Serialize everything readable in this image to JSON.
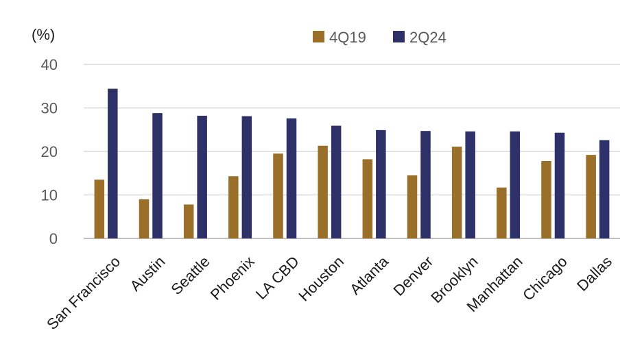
{
  "chart_data": {
    "type": "bar",
    "ylabel": "(%)",
    "ylim": [
      0,
      40
    ],
    "yticks": [
      0,
      10,
      20,
      30,
      40
    ],
    "grid": true,
    "legend_position": "top-right",
    "categories": [
      "San Francisco",
      "Austin",
      "Seattle",
      "Phoenix",
      "LA CBD",
      "Houston",
      "Atlanta",
      "Denver",
      "Brooklyn",
      "Manhattan",
      "Chicago",
      "Dallas"
    ],
    "series": [
      {
        "name": "4Q19",
        "color": "#9a6f2a",
        "values": [
          13.5,
          9.0,
          7.8,
          14.3,
          19.5,
          21.3,
          18.2,
          14.5,
          21.1,
          11.7,
          17.8,
          19.2
        ]
      },
      {
        "name": "2Q24",
        "color": "#2e3168",
        "values": [
          34.4,
          28.8,
          28.2,
          28.1,
          27.6,
          25.9,
          24.9,
          24.7,
          24.6,
          24.6,
          24.3,
          22.6
        ]
      }
    ]
  }
}
